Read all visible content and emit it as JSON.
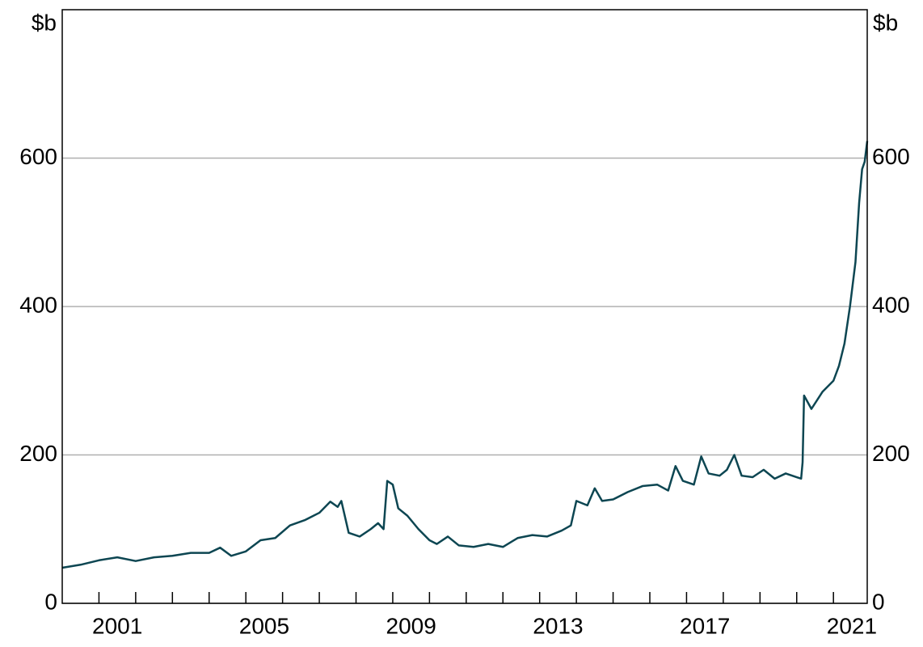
{
  "chart_data": {
    "type": "line",
    "y_label": "$b",
    "y2_label": "$b",
    "xlim": [
      2000.0,
      2021.92
    ],
    "xticks": [
      {
        "value": 2001.5,
        "label": "2001"
      },
      {
        "value": 2005.5,
        "label": "2005"
      },
      {
        "value": 2009.5,
        "label": "2009"
      },
      {
        "value": 2013.5,
        "label": "2013"
      },
      {
        "value": 2017.5,
        "label": "2017"
      },
      {
        "value": 2021.5,
        "label": "2021"
      }
    ],
    "xminor_ticks": [
      2001,
      2002,
      2003,
      2004,
      2005,
      2006,
      2007,
      2008,
      2009,
      2010,
      2011,
      2012,
      2013,
      2014,
      2015,
      2016,
      2017,
      2018,
      2019,
      2020,
      2021
    ],
    "ylim": [
      0,
      800
    ],
    "yticks": [
      0,
      200,
      400,
      600
    ],
    "y2lim": [
      0,
      800
    ],
    "y2ticks": [
      0,
      200,
      400,
      600
    ],
    "grid": true,
    "series": [
      {
        "color": "#0d4652",
        "x": [
          2000.0,
          2000.5,
          2001.0,
          2001.5,
          2002.0,
          2002.5,
          2003.0,
          2003.5,
          2004.0,
          2004.3,
          2004.6,
          2005.0,
          2005.4,
          2005.8,
          2006.2,
          2006.6,
          2007.0,
          2007.3,
          2007.5,
          2007.6,
          2007.8,
          2008.1,
          2008.4,
          2008.6,
          2008.75,
          2008.85,
          2009.0,
          2009.15,
          2009.4,
          2009.7,
          2010.0,
          2010.2,
          2010.5,
          2010.8,
          2011.2,
          2011.6,
          2012.0,
          2012.4,
          2012.8,
          2013.2,
          2013.6,
          2013.85,
          2014.0,
          2014.3,
          2014.5,
          2014.7,
          2015.0,
          2015.4,
          2015.8,
          2016.2,
          2016.5,
          2016.7,
          2016.9,
          2017.2,
          2017.4,
          2017.6,
          2017.9,
          2018.1,
          2018.3,
          2018.5,
          2018.8,
          2019.1,
          2019.4,
          2019.7,
          2020.0,
          2020.12,
          2020.16,
          2020.2,
          2020.4,
          2020.7,
          2021.0,
          2021.15,
          2021.3,
          2021.45,
          2021.6,
          2021.7,
          2021.78,
          2021.85,
          2021.92
        ],
        "values": [
          48,
          52,
          58,
          62,
          57,
          62,
          64,
          68,
          68,
          75,
          64,
          70,
          85,
          88,
          105,
          112,
          122,
          137,
          130,
          138,
          95,
          90,
          100,
          108,
          100,
          165,
          160,
          128,
          118,
          100,
          85,
          80,
          90,
          78,
          76,
          80,
          76,
          88,
          92,
          90,
          98,
          105,
          138,
          132,
          155,
          138,
          140,
          150,
          158,
          160,
          152,
          185,
          165,
          160,
          198,
          175,
          172,
          180,
          200,
          172,
          170,
          180,
          168,
          175,
          170,
          168,
          190,
          280,
          262,
          285,
          300,
          320,
          350,
          400,
          460,
          540,
          585,
          595,
          623
        ]
      }
    ]
  }
}
